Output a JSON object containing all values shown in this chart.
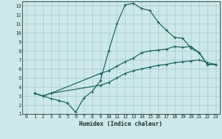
{
  "xlabel": "Humidex (Indice chaleur)",
  "bg_color": "#cce8e8",
  "grid_color": "#aacccc",
  "line_color": "#1a6060",
  "xlim": [
    -0.5,
    23.5
  ],
  "ylim": [
    1,
    13.5
  ],
  "xticks": [
    0,
    1,
    2,
    3,
    4,
    5,
    6,
    7,
    8,
    9,
    10,
    11,
    12,
    13,
    14,
    15,
    16,
    17,
    18,
    19,
    20,
    21,
    22,
    23
  ],
  "yticks": [
    1,
    2,
    3,
    4,
    5,
    6,
    7,
    8,
    9,
    10,
    11,
    12,
    13
  ],
  "line1_x": [
    1,
    2,
    3,
    4,
    5,
    6,
    7,
    8,
    9,
    10,
    11,
    12,
    13,
    14,
    15,
    16,
    17,
    18,
    19,
    20,
    21,
    22,
    23
  ],
  "line1_y": [
    3.3,
    3.0,
    2.7,
    2.5,
    2.2,
    1.2,
    2.8,
    3.5,
    4.7,
    8.0,
    11.0,
    13.1,
    13.3,
    12.7,
    12.5,
    11.2,
    10.3,
    9.5,
    9.4,
    8.3,
    7.8,
    6.5,
    6.5
  ],
  "line2_x": [
    1,
    2,
    3,
    9,
    10,
    11,
    12,
    13,
    14,
    15,
    16,
    17,
    18,
    19,
    20,
    21,
    22,
    23
  ],
  "line2_y": [
    3.3,
    3.0,
    3.3,
    5.5,
    5.8,
    6.3,
    6.8,
    7.2,
    7.8,
    8.0,
    8.1,
    8.2,
    8.5,
    8.4,
    8.5,
    7.8,
    6.5,
    6.5
  ],
  "line3_x": [
    1,
    2,
    3,
    9,
    10,
    11,
    12,
    13,
    14,
    15,
    16,
    17,
    18,
    19,
    20,
    21,
    22,
    23
  ],
  "line3_y": [
    3.3,
    3.0,
    3.3,
    4.2,
    4.5,
    5.0,
    5.5,
    5.8,
    6.0,
    6.2,
    6.4,
    6.5,
    6.7,
    6.8,
    6.9,
    7.0,
    6.7,
    6.5
  ]
}
